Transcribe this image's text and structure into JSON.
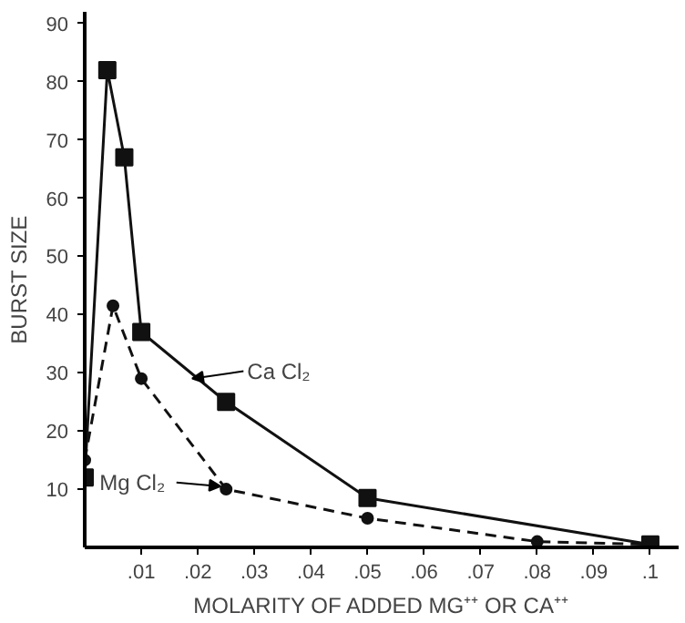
{
  "chart_data": {
    "type": "line",
    "xlabel": "MOLARITY OF ADDED MG⁺⁺ OR CA⁺⁺",
    "ylabel": "BURST SIZE",
    "xlim": [
      0,
      0.105
    ],
    "ylim": [
      0,
      92
    ],
    "xticks": [
      {
        "value": 0.01,
        "label": ".01"
      },
      {
        "value": 0.02,
        "label": ".02"
      },
      {
        "value": 0.03,
        "label": ".03"
      },
      {
        "value": 0.04,
        "label": ".04"
      },
      {
        "value": 0.05,
        "label": ".05"
      },
      {
        "value": 0.06,
        "label": ".06"
      },
      {
        "value": 0.07,
        "label": ".07"
      },
      {
        "value": 0.08,
        "label": ".08"
      },
      {
        "value": 0.09,
        "label": ".09"
      },
      {
        "value": 0.1,
        "label": ".1"
      }
    ],
    "yticks": [
      10,
      20,
      30,
      40,
      50,
      60,
      70,
      80,
      90
    ],
    "grid": false,
    "series": [
      {
        "color": "#111111",
        "marker": "square",
        "line_style": "solid",
        "x": [
          0,
          0.004,
          0.007,
          0.01,
          0.025,
          0.05,
          0.1
        ],
        "values": [
          12,
          82,
          67,
          37,
          25,
          8.5,
          0.5
        ]
      },
      {
        "color": "#111111",
        "marker": "circle",
        "line_style": "dashed",
        "x": [
          0,
          0.005,
          0.01,
          0.025,
          0.05,
          0.08,
          0.1
        ],
        "values": [
          15,
          41.5,
          29,
          10,
          5,
          1,
          0.5
        ]
      }
    ],
    "annotations": [
      {
        "text": "Ca Cl₂",
        "x": 0.019,
        "y": 29
      },
      {
        "text": "Mg Cl₂",
        "x": 0.024,
        "y": 10.5
      }
    ]
  }
}
